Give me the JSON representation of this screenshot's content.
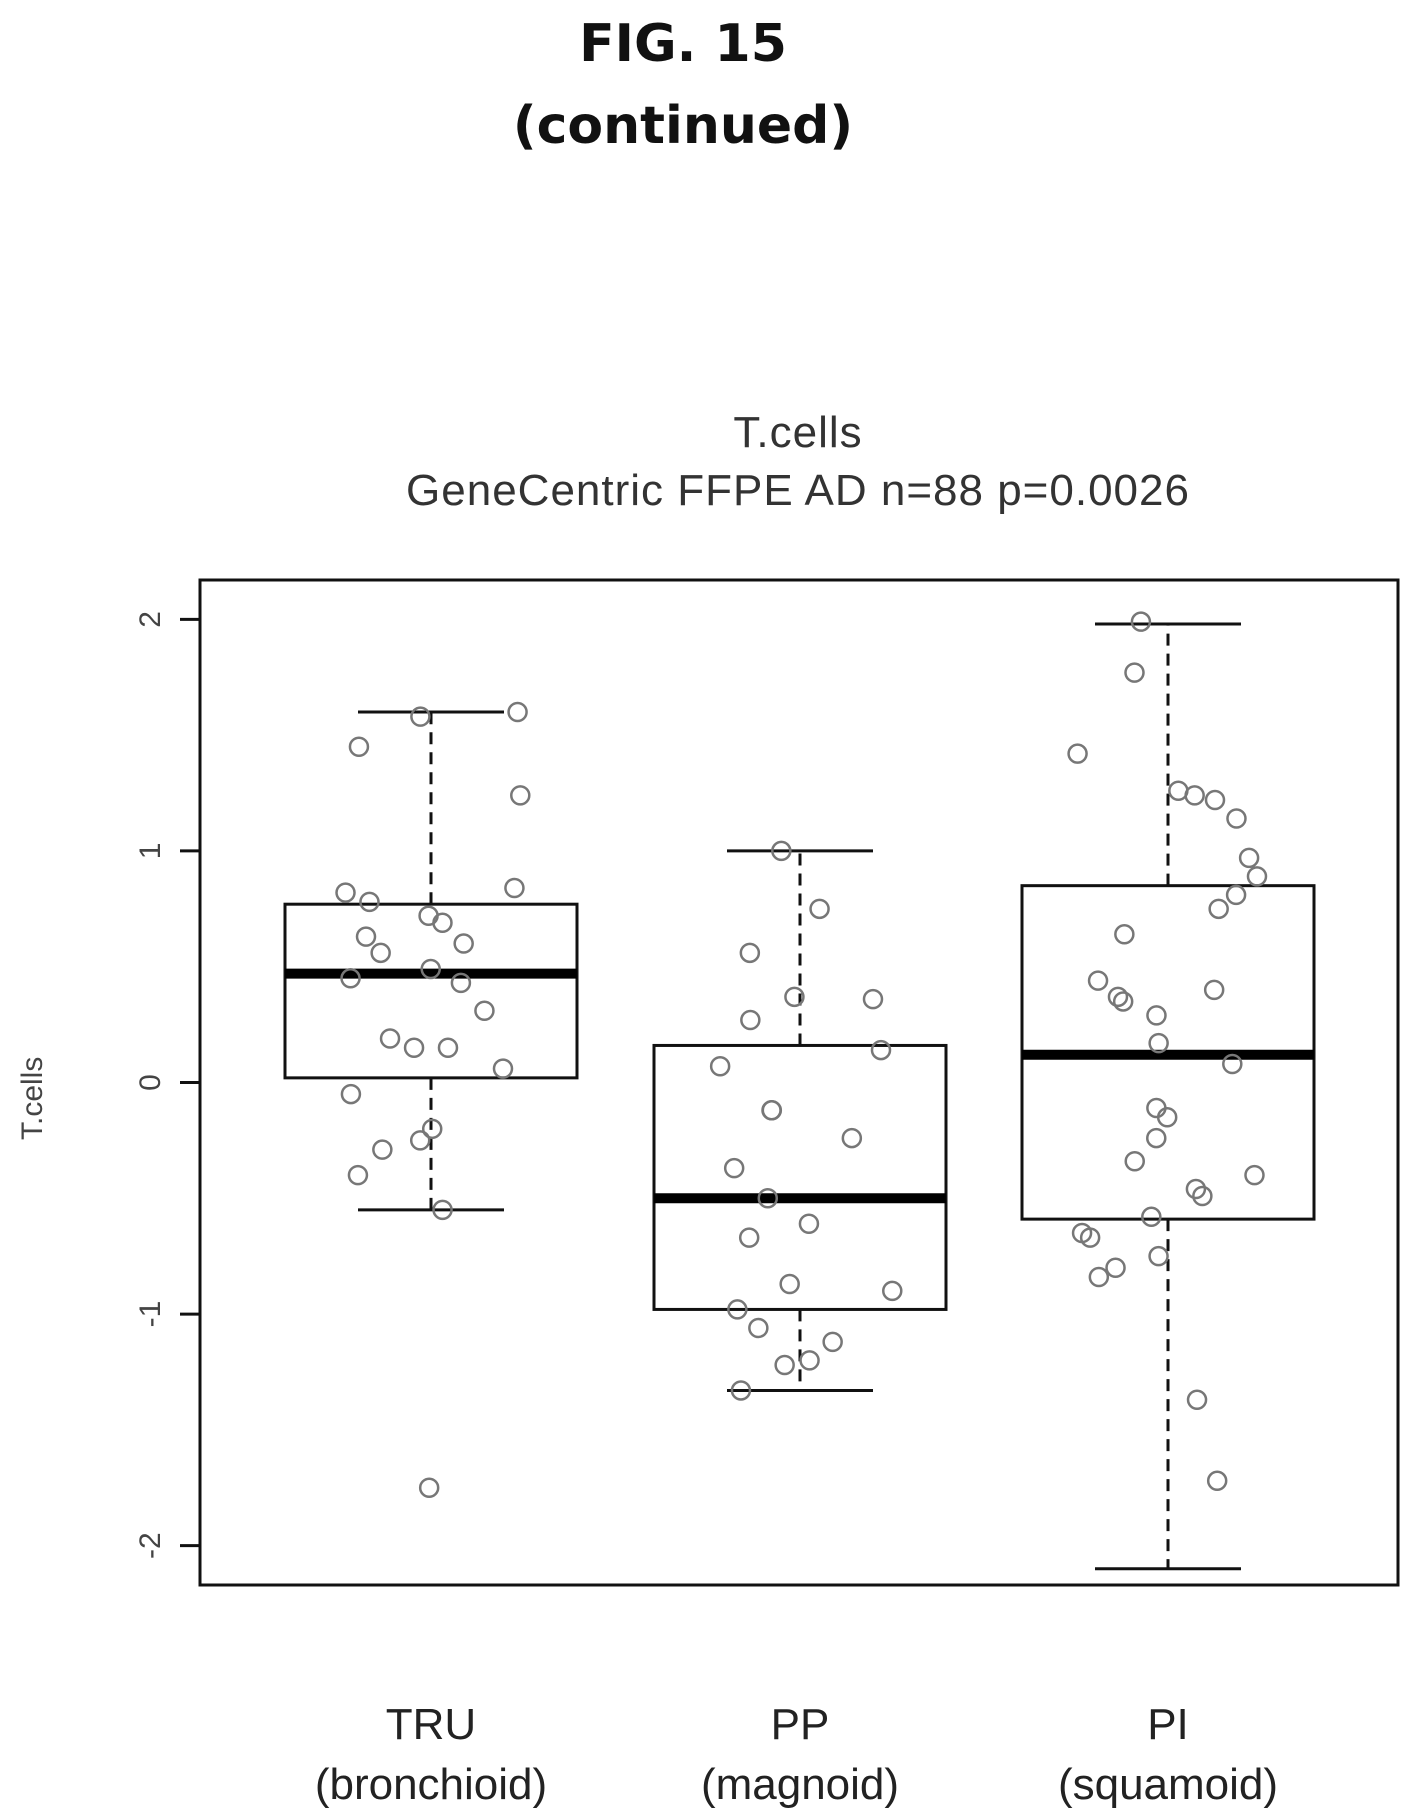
{
  "figure": {
    "title": "FIG. 15",
    "continued": "(continued)"
  },
  "chart_data": {
    "type": "box",
    "title": "T.cells",
    "subtitle": "GeneCentric FFPE AD n=88 p=0.0026",
    "ylabel": "T.cells",
    "xlabel": "",
    "ylim": [
      -2.17,
      2.17
    ],
    "yticks": [
      -2,
      -1,
      0,
      1,
      2
    ],
    "ytick_labels": [
      "-2",
      "-1",
      "0",
      "1",
      "2"
    ],
    "grid": false,
    "categories": [
      {
        "label": "TRU",
        "sublabel": "(bronchioid)"
      },
      {
        "label": "PP",
        "sublabel": "(magnoid)"
      },
      {
        "label": "PI",
        "sublabel": "(squamoid)"
      }
    ],
    "boxes": [
      {
        "whisker_low": -0.55,
        "q1": 0.02,
        "median": 0.47,
        "q3": 0.77,
        "whisker_high": 1.6
      },
      {
        "whisker_low": -1.33,
        "q1": -0.98,
        "median": -0.5,
        "q3": 0.16,
        "whisker_high": 1.0
      },
      {
        "whisker_low": -2.1,
        "q1": -0.59,
        "median": 0.12,
        "q3": 0.85,
        "whisker_high": 1.98
      }
    ],
    "points": [
      [
        -1.75,
        -0.55,
        -0.4,
        -0.29,
        -0.25,
        -0.2,
        -0.05,
        0.06,
        0.15,
        0.15,
        0.19,
        0.31,
        0.43,
        0.45,
        0.49,
        0.56,
        0.6,
        0.63,
        0.69,
        0.72,
        0.78,
        0.82,
        0.84,
        1.24,
        1.45,
        1.58,
        1.6
      ],
      [
        -1.33,
        -1.22,
        -1.2,
        -1.12,
        -1.06,
        -0.98,
        -0.9,
        -0.87,
        -0.67,
        -0.61,
        -0.5,
        -0.37,
        -0.24,
        -0.12,
        -0.12,
        0.07,
        0.14,
        0.27,
        0.36,
        0.37,
        0.56,
        0.75,
        1.0
      ],
      [
        -1.72,
        -1.37,
        -0.84,
        -0.8,
        -0.75,
        -0.67,
        -0.65,
        -0.58,
        -0.49,
        -0.46,
        -0.4,
        -0.34,
        -0.24,
        -0.15,
        -0.11,
        0.08,
        0.17,
        0.29,
        0.35,
        0.37,
        0.4,
        0.44,
        0.64,
        0.75,
        0.81,
        0.89,
        0.97,
        1.14,
        1.22,
        1.24,
        1.26,
        1.42,
        1.77,
        1.99
      ]
    ],
    "colors": {
      "box_stroke": "#111111",
      "median": "#000000",
      "points": "#777777"
    }
  }
}
